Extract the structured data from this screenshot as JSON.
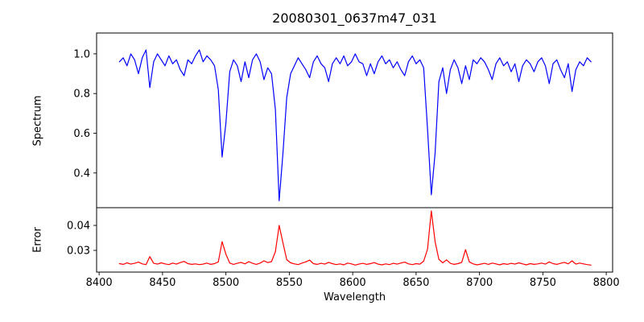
{
  "figure": {
    "background": "#ffffff",
    "axes_color": "#000000",
    "tick_label_color": "#000000"
  },
  "chart_data": {
    "type": "line",
    "title": "20080301_0637m47_031",
    "xlabel": "Wavelength",
    "grid": false,
    "legend": "none",
    "x_start": 8416,
    "x_step": 3,
    "xlim": [
      8398,
      8805
    ],
    "xticks": [
      "8400",
      "8450",
      "8500",
      "8550",
      "8600",
      "8650",
      "8700",
      "8750",
      "8800"
    ],
    "panels": [
      {
        "name": "spectrum",
        "ylabel": "Spectrum",
        "color": "#0000ff",
        "ylim": [
          0.225,
          1.105
        ],
        "yticks": [
          "0.4",
          "0.6",
          "0.8",
          "1.0"
        ],
        "values": [
          0.96,
          0.98,
          0.94,
          1.0,
          0.97,
          0.9,
          0.98,
          1.02,
          0.83,
          0.96,
          1.0,
          0.97,
          0.94,
          0.99,
          0.95,
          0.97,
          0.92,
          0.89,
          0.97,
          0.95,
          0.99,
          1.02,
          0.96,
          0.99,
          0.97,
          0.94,
          0.82,
          0.48,
          0.65,
          0.91,
          0.97,
          0.94,
          0.86,
          0.96,
          0.88,
          0.97,
          1.0,
          0.96,
          0.87,
          0.93,
          0.9,
          0.72,
          0.26,
          0.5,
          0.78,
          0.9,
          0.94,
          0.98,
          0.95,
          0.92,
          0.88,
          0.96,
          0.99,
          0.95,
          0.93,
          0.86,
          0.95,
          0.98,
          0.95,
          0.99,
          0.94,
          0.96,
          1.0,
          0.96,
          0.95,
          0.89,
          0.95,
          0.9,
          0.96,
          0.99,
          0.95,
          0.97,
          0.93,
          0.96,
          0.92,
          0.89,
          0.96,
          0.99,
          0.95,
          0.97,
          0.93,
          0.62,
          0.29,
          0.5,
          0.86,
          0.93,
          0.8,
          0.92,
          0.97,
          0.93,
          0.85,
          0.94,
          0.87,
          0.97,
          0.95,
          0.98,
          0.96,
          0.92,
          0.87,
          0.95,
          0.98,
          0.94,
          0.96,
          0.91,
          0.95,
          0.86,
          0.94,
          0.97,
          0.95,
          0.91,
          0.96,
          0.98,
          0.94,
          0.85,
          0.95,
          0.97,
          0.92,
          0.88,
          0.95,
          0.81,
          0.92,
          0.96,
          0.94,
          0.98,
          0.96
        ]
      },
      {
        "name": "error",
        "ylabel": "Error",
        "color": "#ff0000",
        "ylim": [
          0.0213,
          0.0471
        ],
        "yticks": [
          "0.03",
          "0.04"
        ],
        "values": [
          0.0247,
          0.0244,
          0.025,
          0.0245,
          0.0248,
          0.0253,
          0.0246,
          0.0243,
          0.0275,
          0.0248,
          0.0245,
          0.025,
          0.0246,
          0.0243,
          0.0249,
          0.0245,
          0.0251,
          0.0256,
          0.0247,
          0.0244,
          0.0246,
          0.0243,
          0.0245,
          0.0249,
          0.0244,
          0.0247,
          0.0254,
          0.0335,
          0.0285,
          0.0249,
          0.0244,
          0.0248,
          0.0252,
          0.0246,
          0.0255,
          0.0248,
          0.0244,
          0.0249,
          0.0258,
          0.0251,
          0.0255,
          0.0295,
          0.04,
          0.033,
          0.0263,
          0.025,
          0.0246,
          0.0243,
          0.0249,
          0.0254,
          0.0261,
          0.0247,
          0.0244,
          0.0248,
          0.0245,
          0.0252,
          0.0247,
          0.0243,
          0.0246,
          0.0242,
          0.0249,
          0.0246,
          0.0241,
          0.0245,
          0.0248,
          0.0244,
          0.0247,
          0.0251,
          0.0245,
          0.0242,
          0.0246,
          0.0243,
          0.0248,
          0.0245,
          0.0249,
          0.0253,
          0.0246,
          0.0243,
          0.0247,
          0.0245,
          0.0257,
          0.0305,
          0.0458,
          0.0335,
          0.0264,
          0.025,
          0.0262,
          0.0248,
          0.0244,
          0.0247,
          0.0252,
          0.0303,
          0.0254,
          0.0246,
          0.0242,
          0.0245,
          0.0248,
          0.0244,
          0.0249,
          0.0246,
          0.0242,
          0.0247,
          0.0244,
          0.0248,
          0.0245,
          0.025,
          0.0246,
          0.0242,
          0.0247,
          0.0244,
          0.0246,
          0.0249,
          0.0245,
          0.0254,
          0.0247,
          0.0244,
          0.0248,
          0.0252,
          0.0246,
          0.0258,
          0.0245,
          0.0249,
          0.0246,
          0.0243,
          0.0241
        ]
      }
    ]
  }
}
